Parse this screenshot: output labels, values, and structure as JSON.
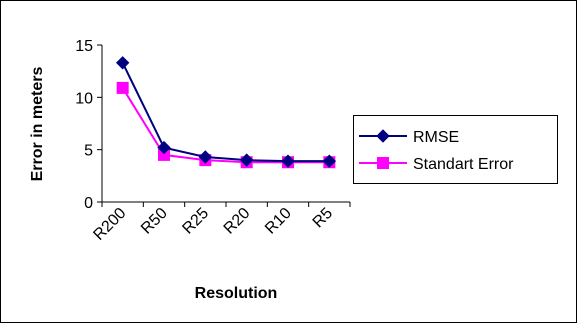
{
  "chart_data": {
    "type": "line",
    "categories": [
      "R200",
      "R50",
      "R25",
      "R20",
      "R10",
      "R5"
    ],
    "series": [
      {
        "name": "RMSE",
        "values": [
          13.3,
          5.2,
          4.3,
          4.0,
          3.9,
          3.9
        ],
        "color": "#000080",
        "marker": "diamond"
      },
      {
        "name": "Standart Error",
        "values": [
          10.9,
          4.5,
          4.0,
          3.8,
          3.8,
          3.8
        ],
        "color": "#ff00ff",
        "marker": "square"
      }
    ],
    "xlabel": "Resolution",
    "ylabel": "Error in meters",
    "ylim": [
      0,
      15
    ],
    "yticks": [
      0,
      5,
      10,
      15
    ],
    "grid": false,
    "legend": "right"
  }
}
